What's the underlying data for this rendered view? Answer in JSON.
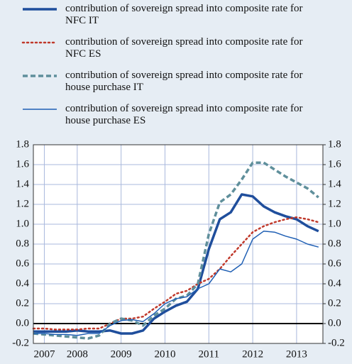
{
  "chart_data": {
    "type": "line",
    "x": [
      2007.5,
      2007.75,
      2008,
      2008.25,
      2008.5,
      2008.75,
      2009,
      2009.25,
      2009.5,
      2009.75,
      2010,
      2010.25,
      2010.5,
      2010.75,
      2011,
      2011.25,
      2011.5,
      2011.75,
      2012,
      2012.25,
      2012.5,
      2012.75,
      2013,
      2013.25,
      2013.5,
      2013.75,
      2014
    ],
    "series": [
      {
        "name": "contribution of sovereign spread into composite rate for NFC IT",
        "color": "#1f4e9c",
        "dash": "solid",
        "width": 3.5,
        "values": [
          -0.08,
          -0.08,
          -0.08,
          -0.08,
          -0.07,
          -0.08,
          -0.08,
          -0.07,
          -0.1,
          -0.1,
          -0.07,
          0.05,
          0.12,
          0.18,
          0.22,
          0.35,
          0.75,
          1.05,
          1.12,
          1.3,
          1.28,
          1.18,
          1.12,
          1.08,
          1.05,
          0.98,
          0.93
        ]
      },
      {
        "name": "contribution of sovereign spread into composite rate for NFC ES",
        "color": "#c0392b",
        "dash": "dotted",
        "width": 2.5,
        "values": [
          -0.05,
          -0.05,
          -0.06,
          -0.06,
          -0.06,
          -0.05,
          -0.05,
          0.0,
          0.05,
          0.05,
          0.07,
          0.15,
          0.22,
          0.3,
          0.33,
          0.4,
          0.45,
          0.55,
          0.68,
          0.8,
          0.92,
          0.98,
          1.02,
          1.05,
          1.07,
          1.05,
          1.02
        ]
      },
      {
        "name": "contribution of sovereign spread into composite rate for house purchase IT",
        "color": "#5f8f9b",
        "dash": "dashed",
        "width": 3.5,
        "values": [
          -0.1,
          -0.11,
          -0.12,
          -0.13,
          -0.14,
          -0.15,
          -0.12,
          0.0,
          0.05,
          0.03,
          -0.02,
          0.08,
          0.15,
          0.25,
          0.28,
          0.4,
          0.9,
          1.22,
          1.3,
          1.45,
          1.62,
          1.62,
          1.55,
          1.48,
          1.42,
          1.36,
          1.27
        ]
      },
      {
        "name": "contribution of sovereign spread into composite rate for house purchase ES",
        "color": "#1f5fb4",
        "dash": "solid",
        "width": 1.5,
        "values": [
          -0.1,
          -0.1,
          -0.11,
          -0.11,
          -0.12,
          -0.1,
          -0.1,
          -0.02,
          0.03,
          0.04,
          0.02,
          0.1,
          0.2,
          0.25,
          0.27,
          0.35,
          0.4,
          0.55,
          0.52,
          0.6,
          0.85,
          0.93,
          0.92,
          0.88,
          0.85,
          0.8,
          0.77
        ]
      }
    ],
    "xlim": [
      2007.5,
      2014.1
    ],
    "xticks": [
      {
        "value": 2007.75,
        "label": "2007"
      },
      {
        "value": 2008.5,
        "label": "2008"
      },
      {
        "value": 2009.5,
        "label": "2009"
      },
      {
        "value": 2010.5,
        "label": "2010"
      },
      {
        "value": 2011.5,
        "label": "2011"
      },
      {
        "value": 2012.5,
        "label": "2012"
      },
      {
        "value": 2013.5,
        "label": "2013"
      }
    ],
    "ylim": [
      -0.2,
      1.8
    ],
    "yticks": [
      -0.2,
      {
        "value": 0,
        "label": "0.0"
      },
      0.2,
      0.4,
      0.6,
      0.8,
      {
        "value": 1,
        "label": "1.0"
      },
      1.2,
      1.4,
      1.6,
      1.8
    ],
    "y2lim": [
      -0.2,
      1.8
    ],
    "y2ticks": [
      -0.2,
      {
        "value": 0,
        "label": "0.0"
      },
      0.2,
      0.4,
      0.6,
      0.8,
      {
        "value": 1,
        "label": "1.0"
      },
      1.2,
      1.4,
      1.6,
      1.8
    ],
    "grid": true,
    "legend": "top"
  }
}
